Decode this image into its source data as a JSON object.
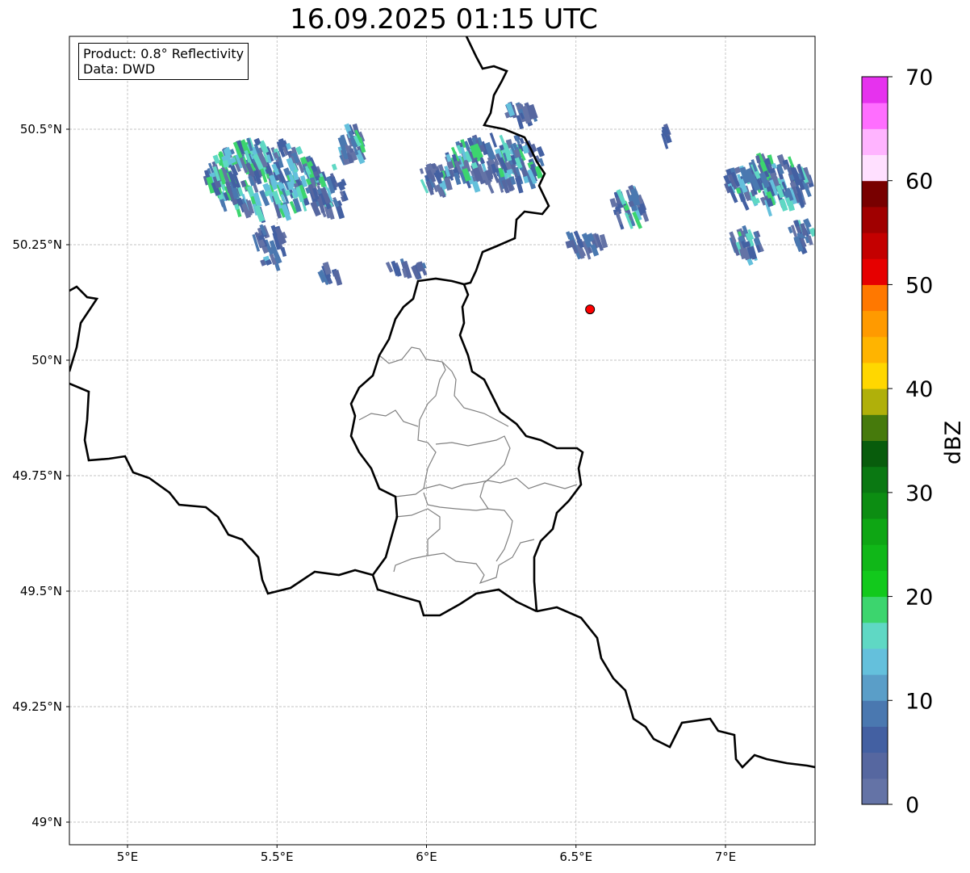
{
  "title": "16.09.2025 01:15 UTC",
  "legend": {
    "product": "Product: 0.8° Reflectivity",
    "source": "Data: DWD"
  },
  "axes": {
    "lat_ticks": [
      "50.5°N",
      "50.25°N",
      "50°N",
      "49.75°N",
      "49.5°N",
      "49.25°N",
      "49°N"
    ],
    "lat_values": [
      50.5,
      50.25,
      50.0,
      49.75,
      49.5,
      49.25,
      49.0
    ],
    "lon_ticks": [
      "5°E",
      "5.5°E",
      "6°E",
      "6.5°E",
      "7°E"
    ],
    "lon_values": [
      5.0,
      5.5,
      6.0,
      6.5,
      7.0
    ],
    "extent": {
      "lon": [
        4.805,
        7.3
      ],
      "lat": [
        48.95,
        50.7
      ]
    }
  },
  "marker": {
    "lon": 6.547,
    "lat": 50.11,
    "color": "#ff0000"
  },
  "colorbar": {
    "label": "dBZ",
    "min": 0,
    "max": 70,
    "step": 2.5,
    "tick_labels": [
      "0",
      "10",
      "20",
      "30",
      "40",
      "50",
      "60",
      "70"
    ],
    "colors": [
      "#6473a6",
      "#5667a0",
      "#4360a2",
      "#4a78b0",
      "#5a9ec8",
      "#64c0dc",
      "#5fd8c4",
      "#3cd56e",
      "#12c91c",
      "#10b718",
      "#0ea614",
      "#0c8d12",
      "#0a7812",
      "#085c0c",
      "#467a0c",
      "#b0b00a",
      "#ffd700",
      "#ffb400",
      "#ff9a00",
      "#ff7800",
      "#e60000",
      "#c40000",
      "#a00000",
      "#780000",
      "#ffe0ff",
      "#ffb4ff",
      "#ff6eff",
      "#e632ee"
    ]
  }
}
